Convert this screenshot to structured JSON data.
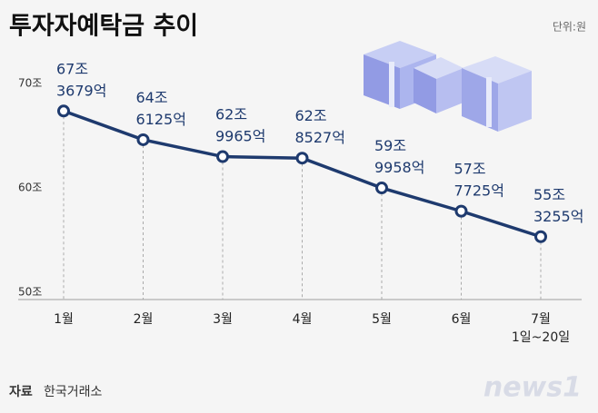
{
  "chart_data": {
    "type": "line",
    "title": "투자자예탁금 추이",
    "unit": "단위:원",
    "categories": [
      "1월",
      "2월",
      "3월",
      "4월",
      "5월",
      "6월",
      "7월 1일~20일"
    ],
    "series": [
      {
        "name": "투자자예탁금",
        "color": "#1e3a6e",
        "values": [
          67.3679,
          64.6125,
          62.9965,
          62.8527,
          59.9958,
          57.7725,
          55.3255
        ],
        "value_labels": [
          "67조 3679억",
          "64조 6125억",
          "62조 9965억",
          "62조 8527억",
          "59조 9958억",
          "57조 7725억",
          "55조 3255억"
        ]
      }
    ],
    "ylim": [
      50,
      70
    ],
    "yticks": [
      {
        "value": 50,
        "label": "50조"
      },
      {
        "value": 60,
        "label": "60조"
      },
      {
        "value": 70,
        "label": "70조"
      }
    ],
    "source_label": "자료",
    "source": "한국거래소",
    "watermark": "news1"
  }
}
